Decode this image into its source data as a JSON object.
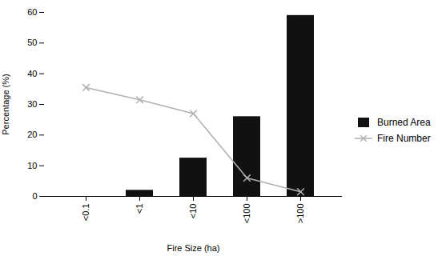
{
  "chart_data": {
    "type": "bar",
    "categories": [
      "<0.1",
      "<1",
      "<10",
      "<100",
      ">100"
    ],
    "series": [
      {
        "name": "Burned Area",
        "type": "bar",
        "color": "#111111",
        "values": [
          0.0,
          2.0,
          12.5,
          26.0,
          59.0
        ]
      },
      {
        "name": "Fire Number",
        "type": "line",
        "color": "#b0b0b0",
        "marker": "x",
        "values": [
          35.5,
          31.5,
          27.0,
          6.0,
          1.5
        ]
      }
    ],
    "xlabel": "Fire Size (ha)",
    "ylabel": "Percentage (%)",
    "ylim": [
      0,
      60
    ],
    "yticks": [
      0,
      10,
      20,
      30,
      40,
      50,
      60
    ],
    "grid": false,
    "legend": "right"
  }
}
